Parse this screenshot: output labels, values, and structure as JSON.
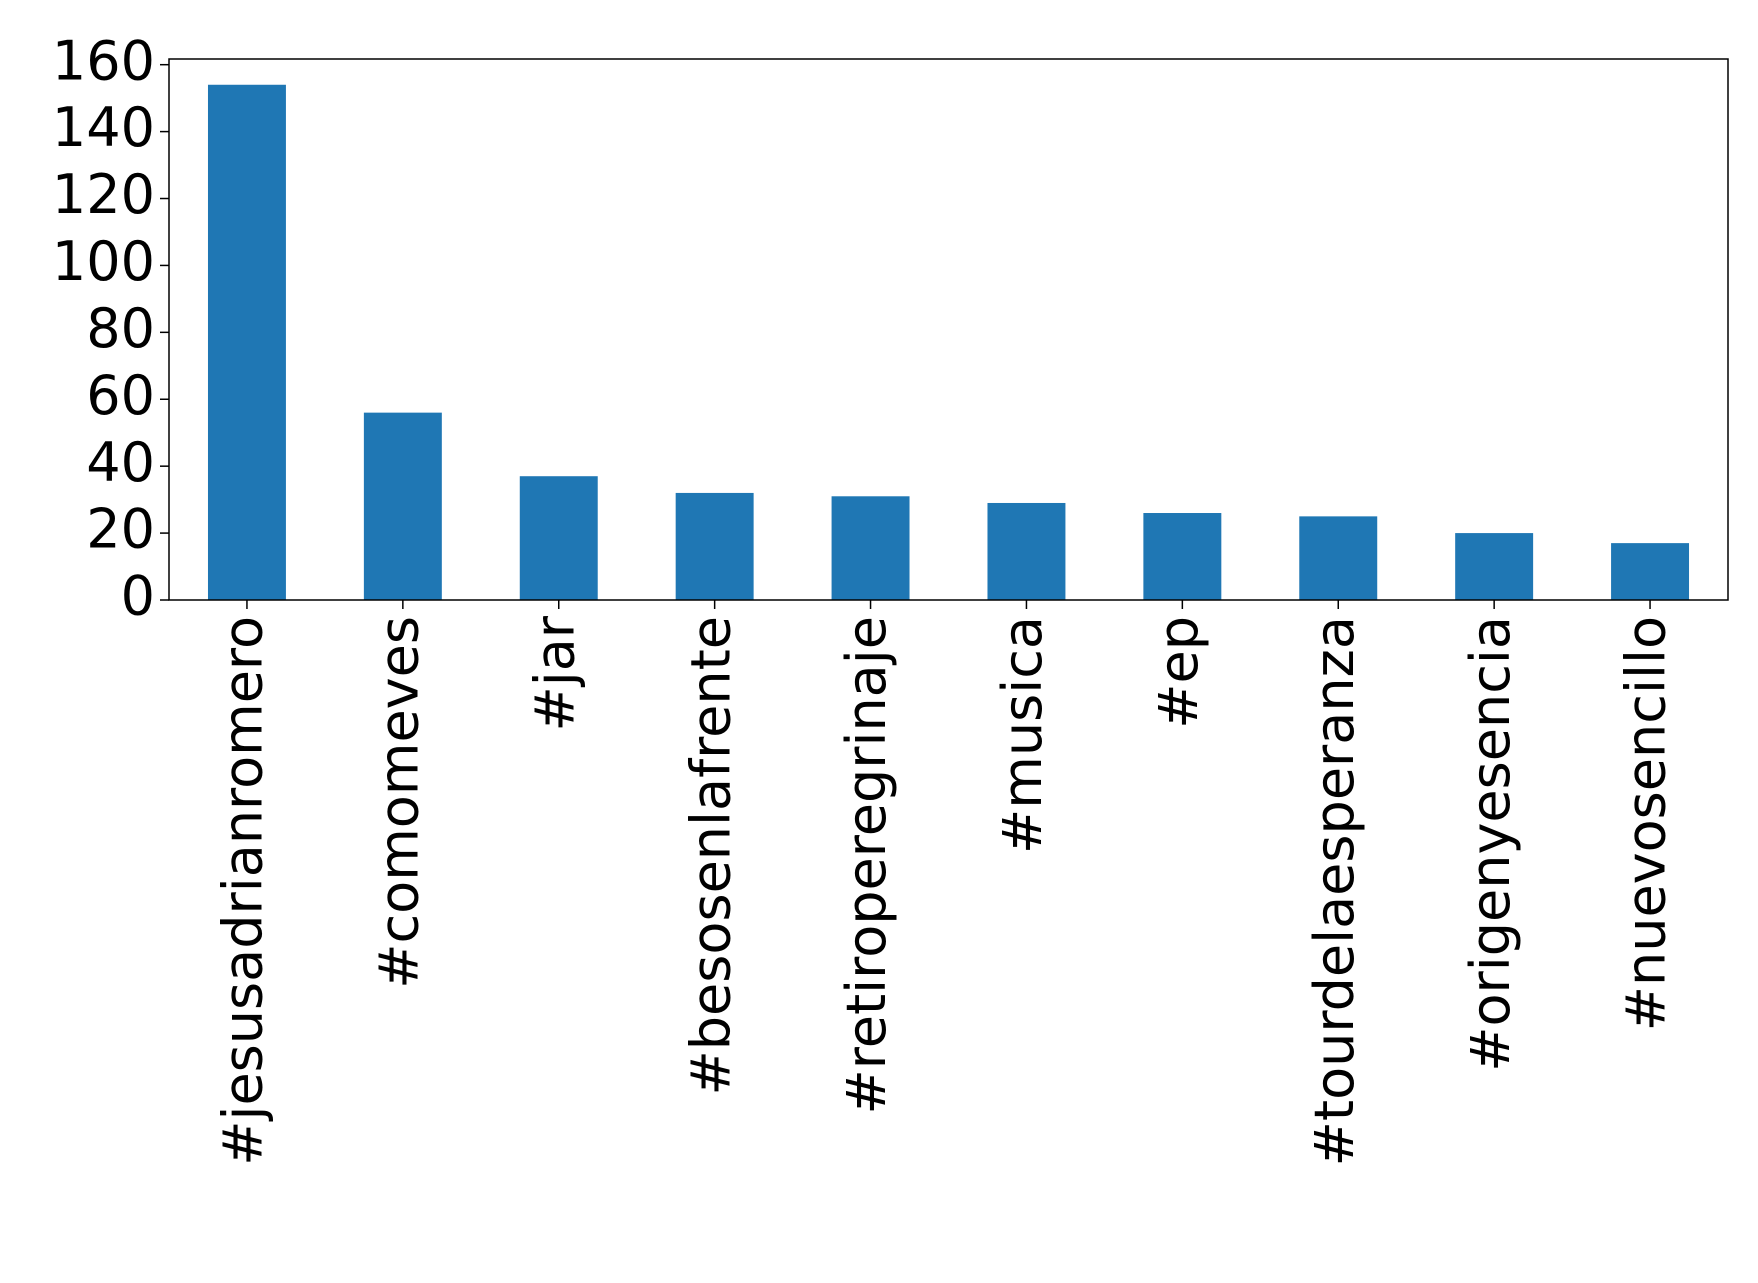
{
  "chart_data": {
    "type": "bar",
    "categories": [
      "#jesusadrianromero",
      "#comomeves",
      "#jar",
      "#besosenlafrente",
      "#retiroperegrinaje",
      "#musica",
      "#ep",
      "#tourdelaesperanza",
      "#origenyesencia",
      "#nuevosencillo"
    ],
    "values": [
      154,
      56,
      37,
      32,
      31,
      29,
      26,
      25,
      20,
      17
    ],
    "color": "#1f77b4",
    "ylim": [
      0,
      161.7
    ],
    "yticks": [
      0,
      20,
      40,
      60,
      80,
      100,
      120,
      140,
      160
    ],
    "grid": false
  }
}
